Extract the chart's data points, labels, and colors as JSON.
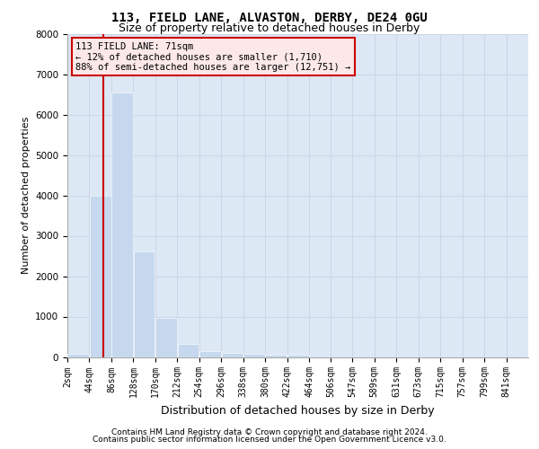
{
  "title1": "113, FIELD LANE, ALVASTON, DERBY, DE24 0GU",
  "title2": "Size of property relative to detached houses in Derby",
  "xlabel": "Distribution of detached houses by size in Derby",
  "ylabel": "Number of detached properties",
  "footer1": "Contains HM Land Registry data © Crown copyright and database right 2024.",
  "footer2": "Contains public sector information licensed under the Open Government Licence v3.0.",
  "annotation_title": "113 FIELD LANE: 71sqm",
  "annotation_line1": "← 12% of detached houses are smaller (1,710)",
  "annotation_line2": "88% of semi-detached houses are larger (12,751) →",
  "property_sqm": 71,
  "bin_edges": [
    2,
    44,
    86,
    128,
    170,
    212,
    254,
    296,
    338,
    380,
    422,
    464,
    506,
    547,
    589,
    631,
    673,
    715,
    757,
    799,
    841
  ],
  "bin_labels": [
    "2sqm",
    "44sqm",
    "86sqm",
    "128sqm",
    "170sqm",
    "212sqm",
    "254sqm",
    "296sqm",
    "338sqm",
    "380sqm",
    "422sqm",
    "464sqm",
    "506sqm",
    "547sqm",
    "589sqm",
    "631sqm",
    "673sqm",
    "715sqm",
    "757sqm",
    "799sqm",
    "841sqm"
  ],
  "values": [
    80,
    4000,
    6550,
    2620,
    960,
    320,
    140,
    110,
    70,
    50,
    50,
    0,
    0,
    0,
    0,
    0,
    0,
    0,
    0,
    0
  ],
  "bar_color": "#c5d8ee",
  "bar_edge_color": "#c5d8ee",
  "vline_color": "#cc0000",
  "annotation_bg": "#fce8e8",
  "annotation_edge": "#cc0000",
  "grid_color": "#ccd6e6",
  "bg_color": "#dce8f4",
  "ylim_max": 8000,
  "yticks": [
    0,
    1000,
    2000,
    3000,
    4000,
    5000,
    6000,
    7000,
    8000
  ],
  "title1_fontsize": 10,
  "title2_fontsize": 9,
  "ylabel_fontsize": 8,
  "xlabel_fontsize": 9,
  "tick_fontsize": 7,
  "footer_fontsize": 6.5,
  "annot_fontsize": 7.5
}
